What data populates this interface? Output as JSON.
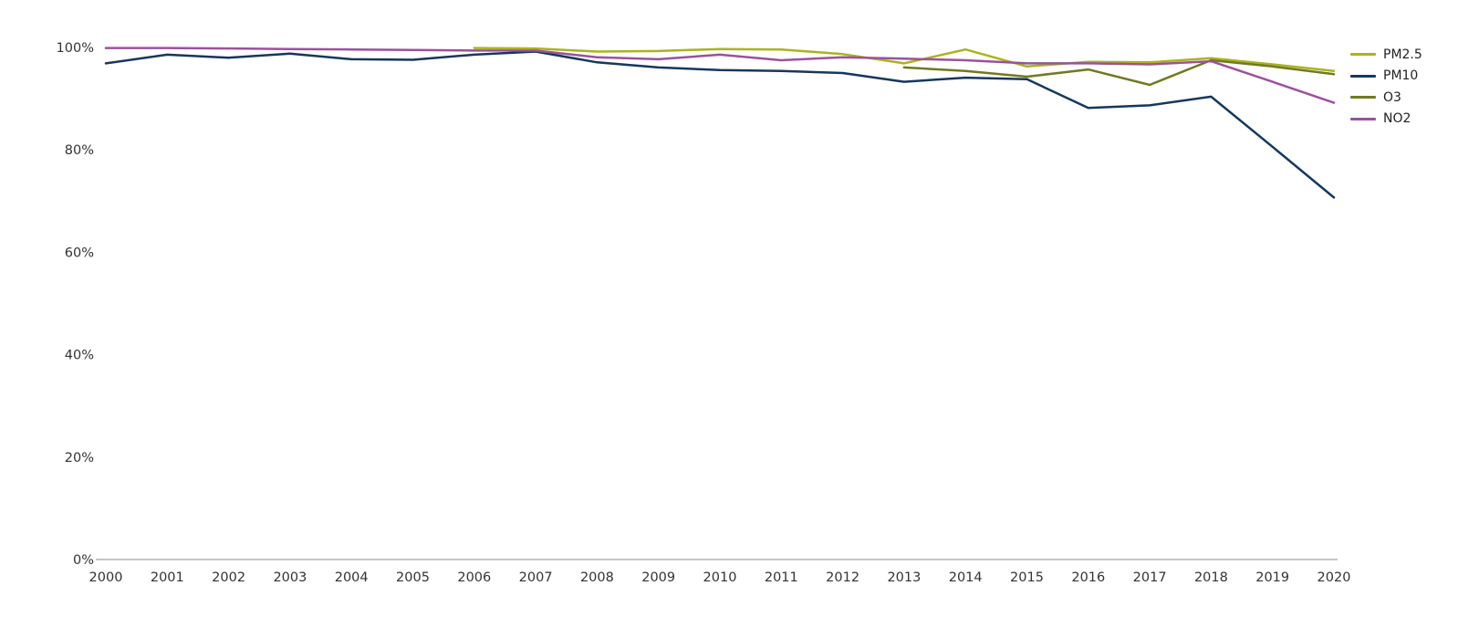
{
  "chart_data": {
    "type": "line",
    "title": "",
    "xlabel": "",
    "ylabel": "",
    "x": [
      2000,
      2001,
      2002,
      2003,
      2004,
      2005,
      2006,
      2007,
      2008,
      2009,
      2010,
      2011,
      2012,
      2013,
      2014,
      2015,
      2016,
      2017,
      2018,
      2019,
      2020
    ],
    "x_tick_labels": [
      "2000",
      "2001",
      "2002",
      "2003",
      "2004",
      "2005",
      "2006",
      "2007",
      "2008",
      "2009",
      "2010",
      "2011",
      "2012",
      "2013",
      "2014",
      "2015",
      "2016",
      "2017",
      "2018",
      "2019",
      "2020"
    ],
    "y_tick_labels": [
      "100%",
      "80%",
      "60%",
      "40%",
      "20%",
      "0%"
    ],
    "y_tick_values": [
      100,
      80,
      60,
      40,
      20,
      0
    ],
    "ylim": [
      0,
      100
    ],
    "xlim": [
      2000,
      2020
    ],
    "grid": false,
    "legend_position": "right-top",
    "unit": "percent",
    "series": [
      {
        "name": "PM2.5",
        "color": "#a9b41e",
        "start_x": 2006,
        "values": [
          99.9,
          99.8,
          99.2,
          99.3,
          99.7,
          99.6,
          98.7,
          96.9,
          99.6,
          96.3,
          97.2,
          97.1,
          97.9,
          96.7,
          95.4
        ]
      },
      {
        "name": "PM10",
        "color": "#17375c",
        "start_x": 2000,
        "values": [
          96.9,
          98.6,
          98.0,
          98.8,
          97.7,
          97.6,
          98.6,
          99.2,
          97.1,
          96.1,
          95.6,
          95.4,
          95.0,
          93.3,
          94.1,
          93.8,
          88.2,
          88.7,
          90.4,
          80.6,
          70.7
        ]
      },
      {
        "name": "O3",
        "color": "#707a20",
        "start_x": 2013,
        "values": [
          96.1,
          95.4,
          94.3,
          95.7,
          92.7,
          97.5,
          96.3,
          94.8
        ]
      },
      {
        "name": "NO2",
        "color": "#9c519c",
        "start_x": 2000,
        "values": [
          99.9,
          99.9,
          99.8,
          99.7,
          99.6,
          99.5,
          99.4,
          99.4,
          98.1,
          97.7,
          98.6,
          97.5,
          98.1,
          97.8,
          97.5,
          96.9,
          96.9,
          96.7,
          97.3,
          93.3,
          89.2
        ]
      }
    ],
    "axis_color": "#8c8c8c",
    "tick_label_color": "#333333"
  }
}
